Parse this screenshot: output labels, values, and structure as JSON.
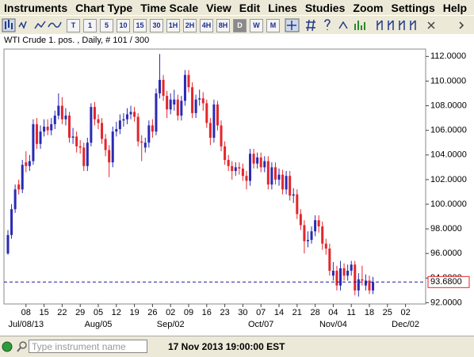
{
  "menu": [
    "Instruments",
    "Chart Type",
    "Time Scale",
    "View",
    "Edit",
    "Lines",
    "Studies",
    "Zoom",
    "Settings",
    "Help"
  ],
  "toolbar": {
    "timeframes": [
      "T",
      "1",
      "5",
      "10",
      "15",
      "30",
      "1H",
      "2H",
      "4H",
      "8H",
      "D",
      "W",
      "M"
    ],
    "selected": "D"
  },
  "chart_data": {
    "type": "candlestick",
    "title": "WTI Crude 1. pos. , Daily, # 101 / 300",
    "x": [
      "2013-07-01",
      "2013-07-02",
      "2013-07-03",
      "2013-07-04",
      "2013-07-05",
      "2013-07-08",
      "2013-07-09",
      "2013-07-10",
      "2013-07-11",
      "2013-07-12",
      "2013-07-15",
      "2013-07-16",
      "2013-07-17",
      "2013-07-18",
      "2013-07-19",
      "2013-07-22",
      "2013-07-23",
      "2013-07-24",
      "2013-07-25",
      "2013-07-26",
      "2013-07-29",
      "2013-07-30",
      "2013-07-31",
      "2013-08-01",
      "2013-08-02",
      "2013-08-05",
      "2013-08-06",
      "2013-08-07",
      "2013-08-08",
      "2013-08-09",
      "2013-08-12",
      "2013-08-13",
      "2013-08-14",
      "2013-08-15",
      "2013-08-16",
      "2013-08-19",
      "2013-08-20",
      "2013-08-21",
      "2013-08-22",
      "2013-08-23",
      "2013-08-26",
      "2013-08-27",
      "2013-08-28",
      "2013-08-29",
      "2013-08-30",
      "2013-09-02",
      "2013-09-03",
      "2013-09-04",
      "2013-09-05",
      "2013-09-06",
      "2013-09-09",
      "2013-09-10",
      "2013-09-11",
      "2013-09-12",
      "2013-09-13",
      "2013-09-16",
      "2013-09-17",
      "2013-09-18",
      "2013-09-19",
      "2013-09-20",
      "2013-09-23",
      "2013-09-24",
      "2013-09-25",
      "2013-09-26",
      "2013-09-27",
      "2013-09-30",
      "2013-10-01",
      "2013-10-02",
      "2013-10-03",
      "2013-10-04",
      "2013-10-07",
      "2013-10-08",
      "2013-10-09",
      "2013-10-10",
      "2013-10-11",
      "2013-10-14",
      "2013-10-15",
      "2013-10-16",
      "2013-10-17",
      "2013-10-18",
      "2013-10-21",
      "2013-10-22",
      "2013-10-23",
      "2013-10-24",
      "2013-10-25",
      "2013-10-28",
      "2013-10-29",
      "2013-10-30",
      "2013-10-31",
      "2013-11-01",
      "2013-11-04",
      "2013-11-05",
      "2013-11-06",
      "2013-11-07",
      "2013-11-08",
      "2013-11-11",
      "2013-11-12",
      "2013-11-13",
      "2013-11-14",
      "2013-11-15",
      "2013-11-18",
      "2013-11-19"
    ],
    "open": [
      96.0,
      97.5,
      99.6,
      101.6,
      101.2,
      103.4,
      103.1,
      103.5,
      106.5,
      104.9,
      105.9,
      106.3,
      106.0,
      106.5,
      107.2,
      108.0,
      106.9,
      107.2,
      105.4,
      105.5,
      104.7,
      104.6,
      103.1,
      105.0,
      107.9,
      106.9,
      106.6,
      105.3,
      104.4,
      103.4,
      105.9,
      106.1,
      106.8,
      106.9,
      107.3,
      107.5,
      107.1,
      105.1,
      104.6,
      105.0,
      106.4,
      105.9,
      109.0,
      110.1,
      108.8,
      107.7,
      108.1,
      108.5,
      107.2,
      108.4,
      110.5,
      109.5,
      107.4,
      108.5,
      108.6,
      108.2,
      106.6,
      105.4,
      108.1,
      106.4,
      104.7,
      103.6,
      103.1,
      102.7,
      103.0,
      102.9,
      102.3,
      101.9,
      104.1,
      103.3,
      103.8,
      103.0,
      103.5,
      101.6,
      103.0,
      102.0,
      102.4,
      101.2,
      102.3,
      100.7,
      100.8,
      99.2,
      98.3,
      97.0,
      97.1,
      97.8,
      98.7,
      98.2,
      96.8,
      96.4,
      94.2,
      94.6,
      93.4,
      94.8,
      94.2,
      94.6,
      95.1,
      93.0,
      93.9,
      93.4,
      93.8,
      93.0
    ],
    "high": [
      97.9,
      100.0,
      101.6,
      102.0,
      103.6,
      104.3,
      104.0,
      106.9,
      107.0,
      106.4,
      106.9,
      106.9,
      107.0,
      107.6,
      109.0,
      108.7,
      107.8,
      107.5,
      106.2,
      105.9,
      105.2,
      105.0,
      105.4,
      108.2,
      108.3,
      107.3,
      107.0,
      105.7,
      104.8,
      106.3,
      106.7,
      107.3,
      107.4,
      107.8,
      108.0,
      107.9,
      107.4,
      105.6,
      105.4,
      106.8,
      106.9,
      109.4,
      112.2,
      110.5,
      109.2,
      109.0,
      109.3,
      108.9,
      108.8,
      110.9,
      110.9,
      109.9,
      108.9,
      109.3,
      109.1,
      108.5,
      107.0,
      108.5,
      108.4,
      106.8,
      105.1,
      104.0,
      103.5,
      103.4,
      103.4,
      103.3,
      102.7,
      104.5,
      104.5,
      104.2,
      104.2,
      103.9,
      103.9,
      103.4,
      103.4,
      102.9,
      102.8,
      102.7,
      102.7,
      101.3,
      101.2,
      99.6,
      98.7,
      97.8,
      98.2,
      99.1,
      99.1,
      98.6,
      97.2,
      96.8,
      95.3,
      95.0,
      95.4,
      95.2,
      95.1,
      95.4,
      95.4,
      94.4,
      95.0,
      94.3,
      94.2,
      94.1
    ],
    "low": [
      95.9,
      97.2,
      99.3,
      100.8,
      100.9,
      102.6,
      102.7,
      103.2,
      104.5,
      104.5,
      105.5,
      105.6,
      105.6,
      106.1,
      106.9,
      106.5,
      106.4,
      105.0,
      104.9,
      104.2,
      104.1,
      102.7,
      102.7,
      104.7,
      106.4,
      106.1,
      104.9,
      103.9,
      102.2,
      103.0,
      105.5,
      105.7,
      106.3,
      106.5,
      106.9,
      106.7,
      104.7,
      103.5,
      104.2,
      104.6,
      105.4,
      105.6,
      108.6,
      108.4,
      107.0,
      107.3,
      107.6,
      106.8,
      106.8,
      108.0,
      109.1,
      107.0,
      107.0,
      108.0,
      107.6,
      106.2,
      104.8,
      105.0,
      106.0,
      104.3,
      103.2,
      102.7,
      102.0,
      102.3,
      102.4,
      101.9,
      101.2,
      101.5,
      102.9,
      102.9,
      102.6,
      102.6,
      101.2,
      101.2,
      101.6,
      101.5,
      100.8,
      100.8,
      100.3,
      100.1,
      98.8,
      97.9,
      96.0,
      96.5,
      96.8,
      97.4,
      97.7,
      96.3,
      95.9,
      94.2,
      93.8,
      93.0,
      93.0,
      93.8,
      93.8,
      94.2,
      92.6,
      92.5,
      93.4,
      93.0,
      92.7,
      92.7
    ],
    "close": [
      97.5,
      99.6,
      101.2,
      101.2,
      103.2,
      103.1,
      103.5,
      106.5,
      104.9,
      105.9,
      106.3,
      106.0,
      106.5,
      107.2,
      108.0,
      106.9,
      107.2,
      105.4,
      105.5,
      104.7,
      104.6,
      103.1,
      105.0,
      107.9,
      106.9,
      106.6,
      105.3,
      104.4,
      103.4,
      105.9,
      106.1,
      106.8,
      106.9,
      107.3,
      107.5,
      107.1,
      105.1,
      105.0,
      105.0,
      106.4,
      105.9,
      109.0,
      110.1,
      108.8,
      107.7,
      108.5,
      108.5,
      107.2,
      108.4,
      110.5,
      109.5,
      107.4,
      108.5,
      108.6,
      108.2,
      106.6,
      105.4,
      108.1,
      106.4,
      104.7,
      103.6,
      103.1,
      102.7,
      103.0,
      102.9,
      102.3,
      101.9,
      104.1,
      103.3,
      103.8,
      103.0,
      103.5,
      101.6,
      103.0,
      102.0,
      102.4,
      101.2,
      102.3,
      100.7,
      100.8,
      99.2,
      98.3,
      97.0,
      97.1,
      97.8,
      98.7,
      98.2,
      96.8,
      96.4,
      94.6,
      94.6,
      93.4,
      94.8,
      94.2,
      94.6,
      95.1,
      93.0,
      93.9,
      93.8,
      93.8,
      93.0,
      93.68
    ],
    "up_color": "#2a2ab4",
    "down_color": "#e3262b",
    "ylim": [
      91.9,
      112.6
    ],
    "yticks": [
      {
        "value": 92,
        "label": "92.0000"
      },
      {
        "value": 94,
        "label": "94.0000"
      },
      {
        "value": 96,
        "label": "96.0000"
      },
      {
        "value": 98,
        "label": "98.0000"
      },
      {
        "value": 100,
        "label": "100.0000"
      },
      {
        "value": 102,
        "label": "102.0000"
      },
      {
        "value": 104,
        "label": "104.0000"
      },
      {
        "value": 106,
        "label": "106.0000"
      },
      {
        "value": 108,
        "label": "108.0000"
      },
      {
        "value": 110,
        "label": "110.0000"
      },
      {
        "value": 112,
        "label": "112.0000"
      }
    ],
    "xticks": [
      {
        "value": "2013-07-08",
        "label": "08"
      },
      {
        "value": "2013-07-15",
        "label": "15"
      },
      {
        "value": "2013-07-22",
        "label": "22"
      },
      {
        "value": "2013-07-29",
        "label": "29"
      },
      {
        "value": "2013-08-05",
        "label": "05"
      },
      {
        "value": "2013-08-12",
        "label": "12"
      },
      {
        "value": "2013-08-19",
        "label": "19"
      },
      {
        "value": "2013-08-26",
        "label": "26"
      },
      {
        "value": "2013-09-02",
        "label": "02"
      },
      {
        "value": "2013-09-09",
        "label": "09"
      },
      {
        "value": "2013-09-16",
        "label": "16"
      },
      {
        "value": "2013-09-23",
        "label": "23"
      },
      {
        "value": "2013-09-30",
        "label": "30"
      },
      {
        "value": "2013-10-07",
        "label": "07"
      },
      {
        "value": "2013-10-14",
        "label": "14"
      },
      {
        "value": "2013-10-21",
        "label": "21"
      },
      {
        "value": "2013-10-28",
        "label": "28"
      },
      {
        "value": "2013-11-04",
        "label": "04"
      },
      {
        "value": "2013-11-11",
        "label": "11"
      },
      {
        "value": "2013-11-18",
        "label": "18"
      },
      {
        "value": "2013-11-25",
        "label": "25"
      },
      {
        "value": "2013-12-02",
        "label": "02"
      }
    ],
    "month_ticks": [
      {
        "value": "2013-07-08",
        "label": "Jul/08/13"
      },
      {
        "value": "2013-08-05",
        "label": "Aug/05"
      },
      {
        "value": "2013-09-02",
        "label": "Sep/02"
      },
      {
        "value": "2013-10-07",
        "label": "Oct/07"
      },
      {
        "value": "2013-11-04",
        "label": "Nov/04"
      },
      {
        "value": "2013-12-02",
        "label": "Dec/02"
      }
    ],
    "last_price": {
      "value": 93.68,
      "label": "93.6800"
    }
  },
  "status_bar": {
    "search_placeholder": "Type instrument name",
    "datetime": "17 Nov 2013 19:00:00 EST"
  }
}
